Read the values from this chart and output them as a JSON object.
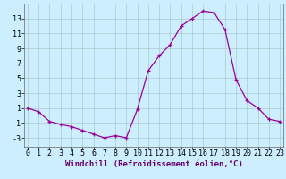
{
  "x": [
    0,
    1,
    2,
    3,
    4,
    5,
    6,
    7,
    8,
    9,
    10,
    11,
    12,
    13,
    14,
    15,
    16,
    17,
    18,
    19,
    20,
    21,
    22,
    23
  ],
  "y": [
    1,
    0.5,
    -0.8,
    -1.2,
    -1.5,
    -2.0,
    -2.5,
    -3.0,
    -2.7,
    -3.0,
    0.8,
    6.0,
    8.0,
    9.5,
    12.0,
    13.0,
    14.0,
    13.8,
    11.5,
    4.8,
    2.0,
    1.0,
    -0.5,
    -0.8
  ],
  "line_color": "#990099",
  "marker": "+",
  "marker_size": 3.5,
  "marker_lw": 0.9,
  "line_width": 0.9,
  "bg_color": "#cceeff",
  "grid_color": "#aacccc",
  "xlabel": "Windchill (Refroidissement éolien,°C)",
  "ylim": [
    -4.2,
    15.0
  ],
  "xlim": [
    -0.3,
    23.3
  ],
  "yticks": [
    -3,
    -1,
    1,
    3,
    5,
    7,
    9,
    11,
    13
  ],
  "xticks": [
    0,
    1,
    2,
    3,
    4,
    5,
    6,
    7,
    8,
    9,
    10,
    11,
    12,
    13,
    14,
    15,
    16,
    17,
    18,
    19,
    20,
    21,
    22,
    23
  ],
  "xlabel_fontsize": 6.5,
  "tick_fontsize": 6.0
}
